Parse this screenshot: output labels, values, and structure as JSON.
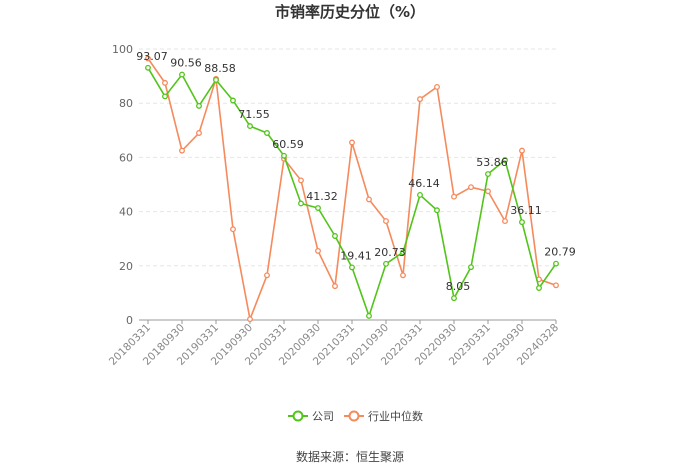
{
  "chart_data": {
    "type": "line",
    "title": "市销率历史分位（%）",
    "source": "数据来源：恒生聚源",
    "ylim": [
      0,
      100
    ],
    "yticks": [
      0,
      20,
      40,
      60,
      80,
      100
    ],
    "x_tick_labels": [
      "20180331",
      "20180930",
      "20190331",
      "20190930",
      "20200331",
      "20200930",
      "20210331",
      "20210930",
      "20220331",
      "20220930",
      "20230331",
      "20230930",
      "20240328"
    ],
    "point_count": 25,
    "legend_position": "bottom",
    "series": [
      {
        "name": "公司",
        "color": "#52c41a",
        "values": [
          93.07,
          82.5,
          90.56,
          79.0,
          88.58,
          81.0,
          71.55,
          69.0,
          60.59,
          43.0,
          41.32,
          31.0,
          19.41,
          1.5,
          20.73,
          25.0,
          46.14,
          40.5,
          8.05,
          19.5,
          53.86,
          59.0,
          36.11,
          11.8,
          20.79
        ],
        "labels": {
          "0": "93.07",
          "2": "90.56",
          "4": "88.58",
          "6": "71.55",
          "8": "60.59",
          "10": "41.32",
          "12": "19.41",
          "14": "20.73",
          "16": "46.14",
          "18": "8.05",
          "20": "53.86",
          "22": "36.11",
          "24": "20.79"
        }
      },
      {
        "name": "行业中位数",
        "color": "#f58a5c",
        "values": [
          96.5,
          87.5,
          62.5,
          69.0,
          89.0,
          33.5,
          0.3,
          16.5,
          59.5,
          51.5,
          25.5,
          12.5,
          65.5,
          44.5,
          36.5,
          16.5,
          81.5,
          86.0,
          45.5,
          49.0,
          47.5,
          36.5,
          62.5,
          15.0,
          12.8
        ]
      }
    ]
  }
}
